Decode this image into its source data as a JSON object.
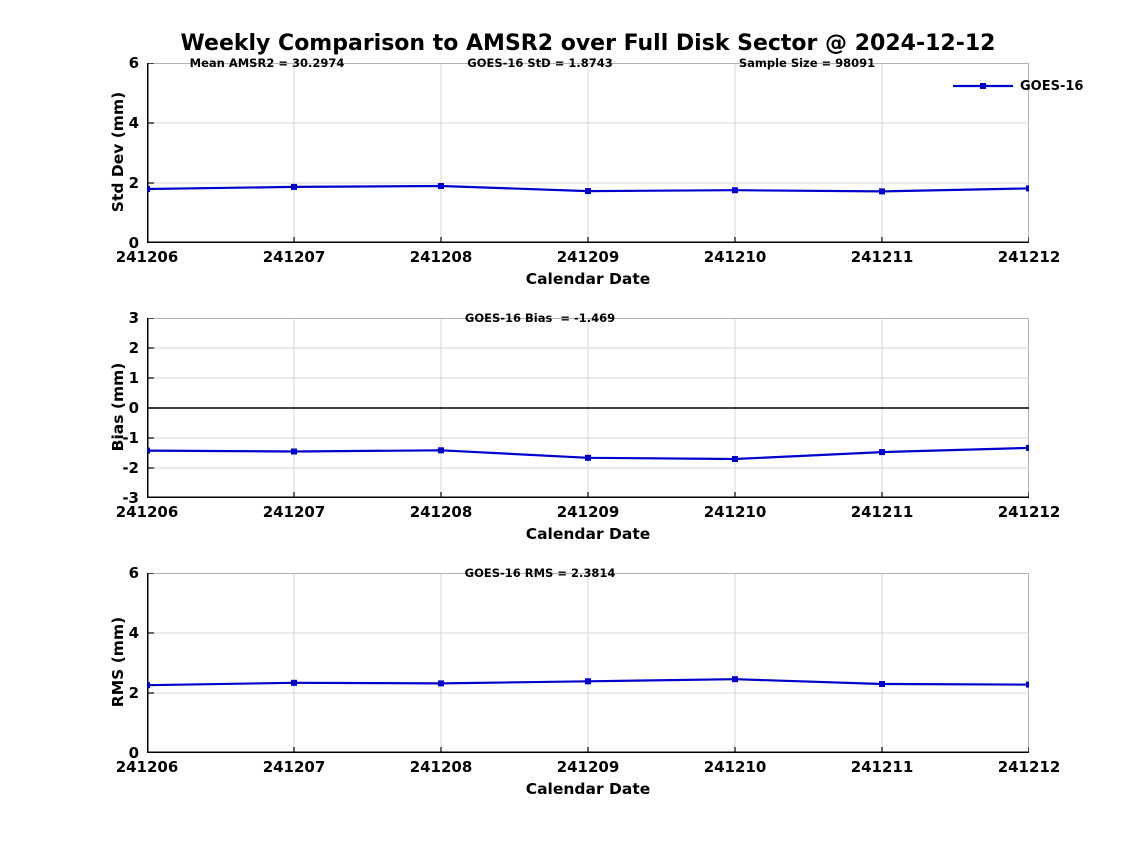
{
  "title": "Weekly Comparison to AMSR2 over Full Disk Sector @ 2024-12-12",
  "legend": {
    "label": "GOES-16",
    "position": "top-right-of-first-panel"
  },
  "colors": {
    "line": "#0000cc",
    "grid": "#d6d6d6",
    "axis": "#000000",
    "frame_light": "#b3b3b3",
    "text": "#000000",
    "background": "#ffffff"
  },
  "x_axis": {
    "label": "Calendar Date",
    "categories": [
      "241206",
      "241207",
      "241208",
      "241209",
      "241210",
      "241211",
      "241212"
    ]
  },
  "chart_data": [
    {
      "type": "line",
      "name": "std-dev",
      "ylabel": "Std Dev (mm)",
      "xlabel": "Calendar Date",
      "ylim": [
        0,
        6
      ],
      "yticks": [
        0,
        2,
        4,
        6
      ],
      "grid": true,
      "annotations": [
        "Mean AMSR2 = 30.2974",
        "GOES-16 StD = 1.8743",
        "Sample Size = 98091"
      ],
      "categories": [
        "241206",
        "241207",
        "241208",
        "241209",
        "241210",
        "241211",
        "241212"
      ],
      "series": [
        {
          "name": "GOES-16",
          "values": [
            1.8,
            1.87,
            1.9,
            1.73,
            1.76,
            1.72,
            1.82
          ]
        }
      ],
      "legend_entries": [
        "GOES-16"
      ]
    },
    {
      "type": "line",
      "name": "bias",
      "ylabel": "Bias (mm)",
      "xlabel": "Calendar Date",
      "ylim": [
        -3,
        3
      ],
      "yticks": [
        -3,
        -2,
        -1,
        0,
        1,
        2,
        3
      ],
      "grid": true,
      "zero_line": true,
      "annotations": [
        "GOES-16 Bias  = -1.469"
      ],
      "categories": [
        "241206",
        "241207",
        "241208",
        "241209",
        "241210",
        "241211",
        "241212"
      ],
      "series": [
        {
          "name": "GOES-16",
          "values": [
            -1.42,
            -1.45,
            -1.41,
            -1.66,
            -1.7,
            -1.47,
            -1.33
          ]
        }
      ],
      "legend_entries": []
    },
    {
      "type": "line",
      "name": "rms",
      "ylabel": "RMS (mm)",
      "xlabel": "Calendar Date",
      "ylim": [
        0,
        6
      ],
      "yticks": [
        0,
        2,
        4,
        6
      ],
      "grid": true,
      "annotations": [
        "GOES-16 RMS = 2.3814"
      ],
      "categories": [
        "241206",
        "241207",
        "241208",
        "241209",
        "241210",
        "241211",
        "241212"
      ],
      "series": [
        {
          "name": "GOES-16",
          "values": [
            2.26,
            2.34,
            2.32,
            2.39,
            2.46,
            2.3,
            2.28
          ]
        }
      ],
      "legend_entries": []
    }
  ]
}
